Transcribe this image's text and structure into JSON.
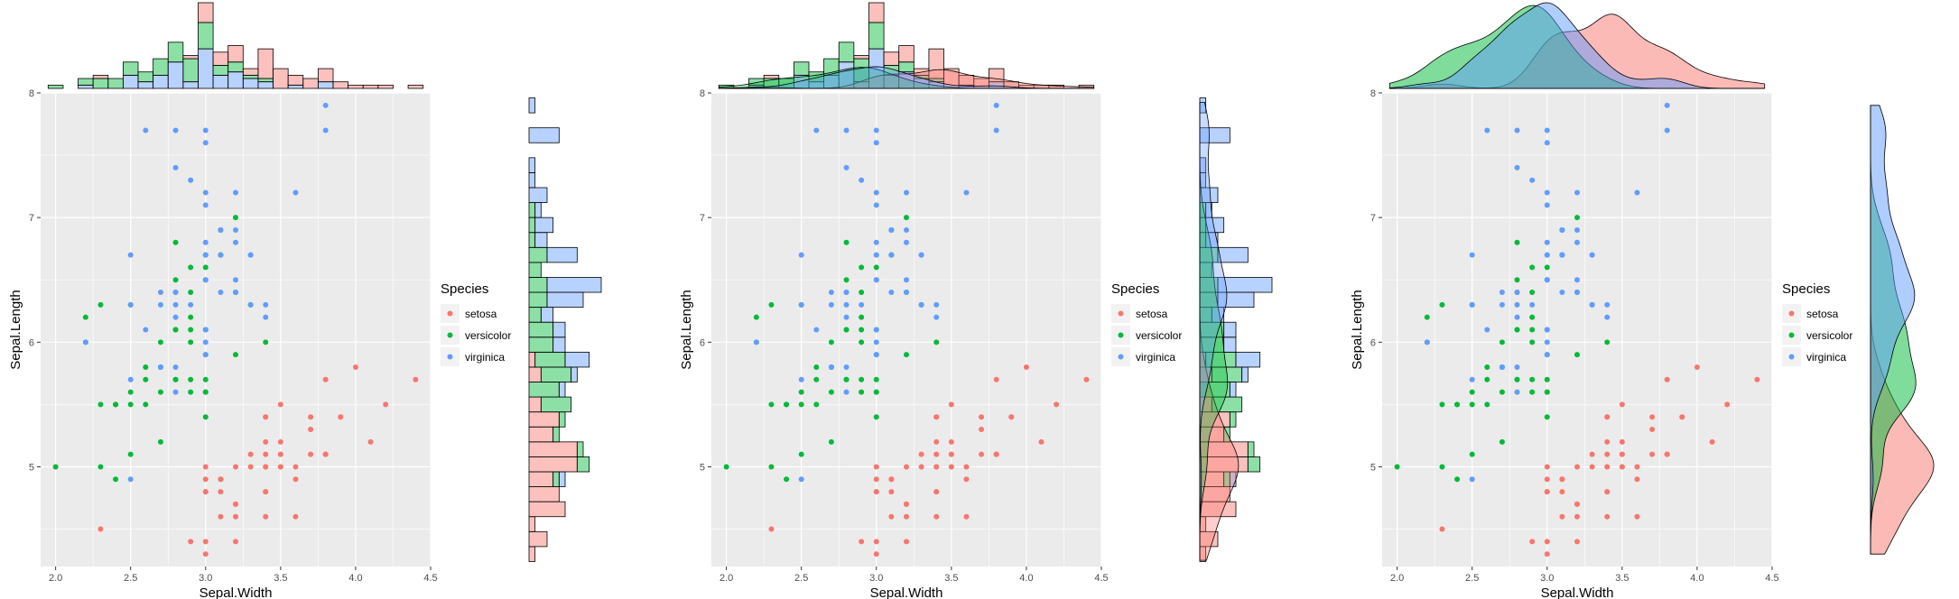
{
  "colors": {
    "setosa": "#F8766D",
    "versicolor": "#00BA38",
    "virginica": "#619CFF",
    "panel_bg": "#EBEBEB",
    "grid": "#FFFFFF"
  },
  "legend": {
    "title": "Species",
    "items": [
      "setosa",
      "versicolor",
      "virginica"
    ]
  },
  "labels": {
    "x": "Sepal.Width",
    "y": "Sepal.Length"
  },
  "chart_data": [
    {
      "type": "scatter",
      "marginal": "histogram",
      "xlabel": "Sepal.Width",
      "ylabel": "Sepal.Length",
      "xlim": [
        1.9,
        4.5
      ],
      "ylim": [
        4.2,
        8.0
      ],
      "xticks": [
        "2.0",
        "2.5",
        "3.0",
        "3.5",
        "4.0",
        "4.5"
      ],
      "yticks": [
        "5",
        "6",
        "7",
        "8"
      ],
      "legend_title": "Species",
      "legend_position": "right"
    },
    {
      "type": "scatter",
      "marginal": "histogram + density",
      "xlabel": "Sepal.Width",
      "ylabel": "Sepal.Length",
      "xlim": [
        1.9,
        4.5
      ],
      "ylim": [
        4.2,
        8.0
      ],
      "xticks": [
        "2.0",
        "2.5",
        "3.0",
        "3.5",
        "4.0",
        "4.5"
      ],
      "yticks": [
        "5",
        "6",
        "7",
        "8"
      ],
      "legend_title": "Species",
      "legend_position": "right"
    },
    {
      "type": "scatter",
      "marginal": "density",
      "xlabel": "Sepal.Width",
      "ylabel": "Sepal.Length",
      "xlim": [
        1.9,
        4.5
      ],
      "ylim": [
        4.2,
        8.0
      ],
      "xticks": [
        "2.0",
        "2.5",
        "3.0",
        "3.5",
        "4.0",
        "4.5"
      ],
      "yticks": [
        "5",
        "6",
        "7",
        "8"
      ],
      "legend_title": "Species",
      "legend_position": "right"
    }
  ],
  "iris": {
    "setosa": [
      [
        3.5,
        5.1
      ],
      [
        3.0,
        4.9
      ],
      [
        3.2,
        4.7
      ],
      [
        3.1,
        4.6
      ],
      [
        3.6,
        5.0
      ],
      [
        3.9,
        5.4
      ],
      [
        3.4,
        4.6
      ],
      [
        3.4,
        5.0
      ],
      [
        2.9,
        4.4
      ],
      [
        3.1,
        4.9
      ],
      [
        3.7,
        5.4
      ],
      [
        3.4,
        4.8
      ],
      [
        3.0,
        4.8
      ],
      [
        3.0,
        4.3
      ],
      [
        4.0,
        5.8
      ],
      [
        4.4,
        5.7
      ],
      [
        3.9,
        5.4
      ],
      [
        3.5,
        5.1
      ],
      [
        3.8,
        5.7
      ],
      [
        3.8,
        5.1
      ],
      [
        3.4,
        5.4
      ],
      [
        3.7,
        5.1
      ],
      [
        3.6,
        4.6
      ],
      [
        3.3,
        5.1
      ],
      [
        3.4,
        4.8
      ],
      [
        3.0,
        5.0
      ],
      [
        3.4,
        5.0
      ],
      [
        3.5,
        5.2
      ],
      [
        3.4,
        5.2
      ],
      [
        3.2,
        4.7
      ],
      [
        3.1,
        4.8
      ],
      [
        3.4,
        5.4
      ],
      [
        4.1,
        5.2
      ],
      [
        4.2,
        5.5
      ],
      [
        3.1,
        4.9
      ],
      [
        3.2,
        5.0
      ],
      [
        3.5,
        5.5
      ],
      [
        3.6,
        4.9
      ],
      [
        3.0,
        4.4
      ],
      [
        3.4,
        5.1
      ],
      [
        3.5,
        5.0
      ],
      [
        2.3,
        4.5
      ],
      [
        3.2,
        4.4
      ],
      [
        3.5,
        5.0
      ],
      [
        3.8,
        5.1
      ],
      [
        3.0,
        4.8
      ],
      [
        3.8,
        5.1
      ],
      [
        3.2,
        4.6
      ],
      [
        3.7,
        5.3
      ],
      [
        3.3,
        5.0
      ]
    ],
    "versicolor": [
      [
        3.2,
        7.0
      ],
      [
        3.2,
        6.4
      ],
      [
        3.1,
        6.9
      ],
      [
        2.3,
        5.5
      ],
      [
        2.8,
        6.5
      ],
      [
        2.8,
        5.7
      ],
      [
        3.3,
        6.3
      ],
      [
        2.4,
        4.9
      ],
      [
        2.9,
        6.6
      ],
      [
        2.7,
        5.2
      ],
      [
        2.0,
        5.0
      ],
      [
        3.0,
        5.9
      ],
      [
        2.2,
        6.0
      ],
      [
        2.9,
        6.1
      ],
      [
        2.9,
        5.6
      ],
      [
        3.1,
        6.7
      ],
      [
        3.0,
        5.6
      ],
      [
        2.7,
        5.8
      ],
      [
        2.2,
        6.2
      ],
      [
        2.5,
        5.6
      ],
      [
        3.2,
        5.9
      ],
      [
        2.8,
        6.1
      ],
      [
        2.5,
        6.3
      ],
      [
        2.8,
        6.1
      ],
      [
        2.9,
        6.4
      ],
      [
        3.0,
        6.6
      ],
      [
        2.8,
        6.8
      ],
      [
        3.0,
        6.7
      ],
      [
        2.9,
        6.0
      ],
      [
        2.6,
        5.7
      ],
      [
        2.4,
        5.5
      ],
      [
        2.4,
        5.5
      ],
      [
        2.7,
        5.8
      ],
      [
        2.7,
        6.0
      ],
      [
        3.0,
        5.4
      ],
      [
        3.4,
        6.0
      ],
      [
        3.1,
        6.7
      ],
      [
        2.3,
        6.3
      ],
      [
        3.0,
        5.6
      ],
      [
        2.5,
        5.5
      ],
      [
        2.6,
        5.5
      ],
      [
        3.0,
        6.1
      ],
      [
        2.6,
        5.8
      ],
      [
        2.3,
        5.0
      ],
      [
        2.7,
        5.6
      ],
      [
        3.0,
        5.7
      ],
      [
        2.9,
        5.7
      ],
      [
        2.9,
        6.2
      ],
      [
        2.5,
        5.1
      ],
      [
        2.8,
        5.7
      ]
    ],
    "virginica": [
      [
        3.3,
        6.3
      ],
      [
        2.7,
        5.8
      ],
      [
        3.0,
        7.1
      ],
      [
        2.9,
        6.3
      ],
      [
        3.0,
        6.5
      ],
      [
        3.0,
        7.6
      ],
      [
        2.5,
        4.9
      ],
      [
        2.9,
        7.3
      ],
      [
        2.5,
        6.7
      ],
      [
        3.6,
        7.2
      ],
      [
        3.2,
        6.5
      ],
      [
        2.7,
        6.4
      ],
      [
        3.0,
        6.8
      ],
      [
        2.5,
        5.7
      ],
      [
        2.8,
        5.8
      ],
      [
        3.2,
        6.4
      ],
      [
        3.0,
        6.5
      ],
      [
        3.8,
        7.7
      ],
      [
        2.6,
        7.7
      ],
      [
        2.2,
        6.0
      ],
      [
        3.2,
        6.9
      ],
      [
        2.8,
        5.6
      ],
      [
        2.8,
        7.7
      ],
      [
        2.7,
        6.3
      ],
      [
        3.3,
        6.7
      ],
      [
        3.2,
        7.2
      ],
      [
        2.8,
        6.2
      ],
      [
        3.0,
        6.1
      ],
      [
        2.8,
        6.4
      ],
      [
        3.0,
        7.2
      ],
      [
        2.8,
        7.4
      ],
      [
        3.8,
        7.9
      ],
      [
        2.8,
        6.4
      ],
      [
        2.8,
        6.3
      ],
      [
        2.6,
        6.1
      ],
      [
        3.0,
        7.7
      ],
      [
        3.4,
        6.3
      ],
      [
        3.1,
        6.4
      ],
      [
        3.0,
        6.0
      ],
      [
        3.1,
        6.9
      ],
      [
        3.1,
        6.7
      ],
      [
        3.1,
        6.9
      ],
      [
        2.7,
        5.8
      ],
      [
        3.2,
        6.8
      ],
      [
        3.3,
        6.7
      ],
      [
        3.0,
        6.7
      ],
      [
        2.5,
        6.3
      ],
      [
        3.0,
        6.5
      ],
      [
        3.4,
        6.2
      ],
      [
        3.0,
        5.9
      ]
    ]
  }
}
